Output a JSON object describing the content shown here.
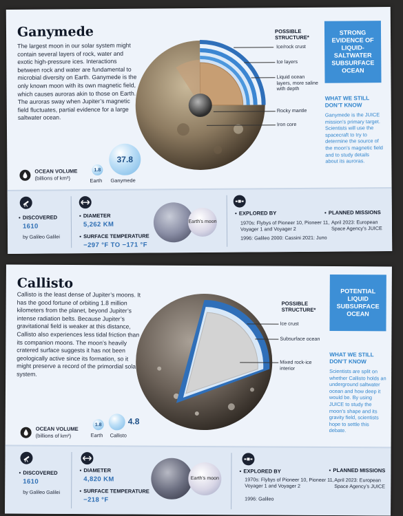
{
  "ganymede": {
    "title": "Ganymede",
    "intro": "The largest moon in our solar system might contain several layers of rock, water and exotic high-pressure ices. Interactions between rock and water are fundamental to microbial diversity on Earth. Ganymede is the only known moon with its own magnetic field, which causes auroras akin to those on Earth. The auroras sway when Jupiter’s magnetic field fluctuates, partial evidence for a large saltwater ocean.",
    "structure_heading": "POSSIBLE STRUCTURE*",
    "structure_labels": [
      "Ice/rock crust",
      "Ice layers",
      "Liquid ocean layers, more saline with depth",
      "Rocky mantle",
      "Iron core"
    ],
    "evidence_box": "STRONG EVIDENCE OF LIQUID-SALTWATER SUBSURFACE OCEAN",
    "know_heading": "WHAT WE STILL DON’T KNOW",
    "know_text": "Ganymede is the JUICE mission’s primary target. Scientists will use the spacecraft to try to determine the source of the moon’s magnetic field and to study details about its auroras.",
    "ocean_label": "OCEAN VOLUME",
    "ocean_units": "(billions of km³)",
    "earth_value": "1.8",
    "moon_value": "37.8",
    "earth_caption": "Earth",
    "moon_caption": "Ganymede",
    "discovered_head": "DISCOVERED",
    "discovered_year": "1610",
    "discovered_by": "by Galileo Galilei",
    "diameter_head": "DIAMETER",
    "diameter_value": "5,262 KM",
    "temp_head": "SURFACE TEMPERATURE",
    "temp_value": "−297 °F TO −171 °F",
    "earths_moon": "Earth’s moon",
    "explored_head": "EXPLORED BY",
    "explored_line1": "1970s: Flybys of Pioneer 10, Pioneer 11, Voyager 1 and Voyager 2",
    "explored_line2": "1996: Galileo 2000: Cassini 2021: Juno",
    "planned_head": "PLANNED MISSIONS",
    "planned_text": "April 2023: European Space Agency’s JUICE"
  },
  "callisto": {
    "title": "Callisto",
    "intro": "Callisto is the least dense of Jupiter’s moons. It has the good fortune of orbiting 1.8 million kilometers from the planet, beyond Jupiter’s intense radiation belts. Because Jupiter’s gravitational field is weaker at this distance, Callisto also experiences less tidal friction than its companion moons. The moon’s heavily cratered surface suggests it has not been geologically active since its formation, so it might preserve a record of the primordial solar system.",
    "structure_heading": "POSSIBLE STRUCTURE*",
    "structure_labels": [
      "Ice crust",
      "Subsurface ocean",
      "Mixed rock-ice interior"
    ],
    "evidence_box": "POTENTIAL LIQUID SUBSURFACE OCEAN",
    "know_heading": "WHAT WE STILL DON’T KNOW",
    "know_text": "Scientists are split on whether Callisto holds an underground saltwater ocean and how deep it would be. By using JUICE to study the moon’s shape and its gravity field, scientists hope to settle this debate.",
    "ocean_label": "OCEAN VOLUME",
    "ocean_units": "(billions of km³)",
    "earth_value": "1.8",
    "moon_value": "4.8",
    "earth_caption": "Earth",
    "moon_caption": "Callisto",
    "discovered_head": "DISCOVERED",
    "discovered_year": "1610",
    "discovered_by": "by Galileo Galilei",
    "diameter_head": "DIAMETER",
    "diameter_value": "4,820 KM",
    "temp_head": "SURFACE TEMPERATURE",
    "temp_value": "−218 °F",
    "earths_moon": "Earth’s moon",
    "explored_head": "EXPLORED BY",
    "explored_line1": "1970s: Flybys of Pioneer 10, Pioneer 11, Voyager 1 and Voyager 2",
    "explored_line2": "1996: Galileo",
    "planned_head": "PLANNED MISSIONS",
    "planned_text": "April 2023: European Space Agency’s JUICE"
  },
  "colors": {
    "accent_blue": "#3d8fd6",
    "text_blue": "#2f84cc",
    "value_blue": "#2f6fb4",
    "page_bg": "#eef3fa"
  },
  "icons": [
    "water-drop-icon",
    "telescope-icon",
    "diameter-arrows-icon",
    "satellite-icon"
  ]
}
